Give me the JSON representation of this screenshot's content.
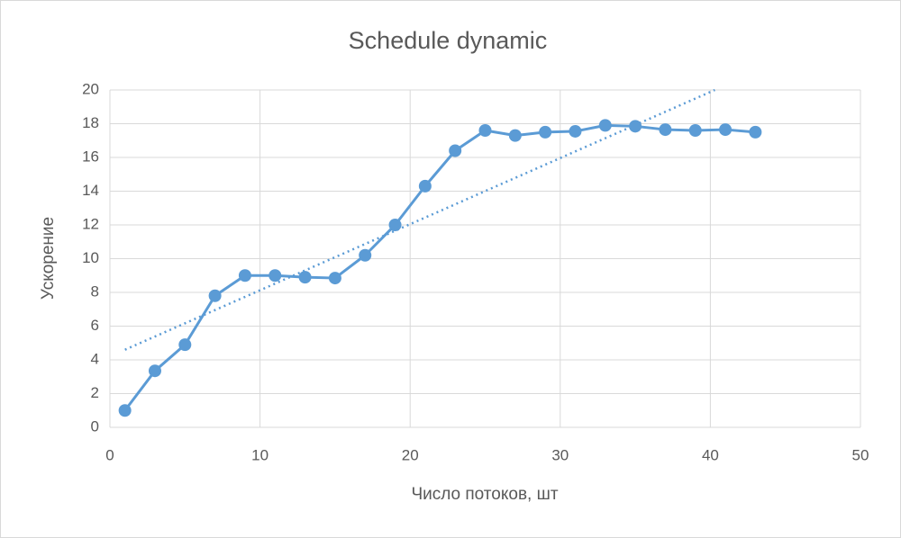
{
  "chart_data": {
    "type": "line",
    "title": "Schedule dynamic",
    "xlabel": "Число потоков, шт",
    "ylabel": "Ускорение",
    "x": [
      1,
      3,
      5,
      7,
      9,
      11,
      13,
      15,
      17,
      19,
      21,
      23,
      25,
      27,
      29,
      31,
      33,
      35,
      37,
      39,
      41,
      43
    ],
    "series": [
      {
        "color": "#5b9bd5",
        "values": [
          1.0,
          3.35,
          4.9,
          7.8,
          9.0,
          9.0,
          8.9,
          8.85,
          10.2,
          12.0,
          14.3,
          16.4,
          17.6,
          17.3,
          17.5,
          17.55,
          17.9,
          17.85,
          17.65,
          17.6,
          17.65,
          17.5
        ]
      }
    ],
    "trendline": {
      "x": [
        1,
        40.3
      ],
      "values": [
        4.6,
        20
      ],
      "color": "#5b9bd5"
    },
    "xlim": [
      0,
      50
    ],
    "xticks": [
      0,
      10,
      20,
      30,
      40,
      50
    ],
    "ylim": [
      0,
      20
    ],
    "yticks": [
      0,
      2,
      4,
      6,
      8,
      10,
      12,
      14,
      16,
      18,
      20
    ],
    "grid": true
  }
}
